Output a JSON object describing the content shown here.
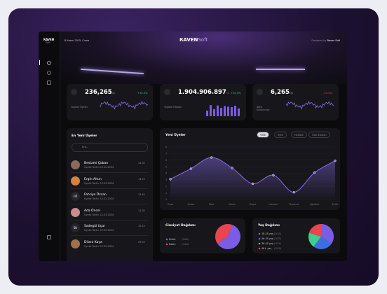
{
  "sidebar": {
    "logo": "RAVEN",
    "logo_sub": "Soft"
  },
  "header": {
    "date": "8 Kasım 2025, Cuma",
    "brand": "RAVEN",
    "brand_sub": "Soft",
    "credit": "Designed by",
    "credit_brand": "Raven Soft"
  },
  "stats": [
    {
      "value": "236,265",
      "unit": "Kişi",
      "change": "+10.3%",
      "label": "Toplam Üyeler"
    },
    {
      "value": "1.904.906.897",
      "unit": "TL",
      "change": "+10.3%",
      "label": "Toplam Hasılat"
    },
    {
      "value": "6,265",
      "unit": "Kişi",
      "change": "-10.3%",
      "label": "Aktif Kullanıcılar"
    }
  ],
  "members": {
    "title": "En Yeni Üyeler",
    "search": "Ara...",
    "items": [
      {
        "name": "Bestami Çoban",
        "date": "Üyelik Tarihi: 12.02.2024",
        "time": "14:32"
      },
      {
        "name": "Ergin Altun",
        "date": "Üyelik Tarihi: 12.02.2024",
        "time": "13:20"
      },
      {
        "name": "Fahriye Özcan",
        "initials": "FÖ",
        "date": "Üyelik Tarihi: 12.02.2024",
        "time": "12:45"
      },
      {
        "name": "Ada Öncel",
        "date": "Üyelik Tarihi: 12.02.2024",
        "time": "11:30"
      },
      {
        "name": "Sadegül Uçar",
        "initials": "SU",
        "date": "Üyelik Tarihi: 12.02.2024",
        "time": "10:15"
      },
      {
        "name": "Dilara Kaya",
        "date": "Üyelik Tarihi: 12.02.2024",
        "time": "09:50"
      }
    ]
  },
  "new_members": {
    "title": "Yeni Üyeler",
    "tabs": [
      "Yıllık",
      "Aylık",
      "Haftalık",
      "Özel Zaman"
    ],
    "chart": {
      "type": "line",
      "categories": [
        "Ocak",
        "Şubat",
        "Mart",
        "Nisan",
        "Mayıs",
        "Haziran",
        "Temmuz",
        "Ağustos",
        "Eylül"
      ],
      "values": [
        3.1,
        4.7,
        6.4,
        4.8,
        2.4,
        3.7,
        1.1,
        4.1,
        5.9
      ],
      "ylim": [
        0,
        8
      ],
      "yticks": [
        0,
        1,
        2,
        3,
        4,
        5,
        6,
        7,
        8
      ],
      "color": "#8b6cf0"
    }
  },
  "gender": {
    "title": "Cinsiyet Dağılımı",
    "chart": {
      "type": "pie",
      "categories": [
        "Erkek",
        "Kadın"
      ],
      "values": [
        60,
        40
      ],
      "value_labels": [
        "(%60)",
        "(%40)"
      ],
      "colors": [
        "#7b5ce6",
        "#e8454f"
      ]
    }
  },
  "age": {
    "title": "Yaş Dağılımı",
    "chart": {
      "type": "pie",
      "categories": [
        "18-25 yaş",
        "26-35 yaş",
        "36-45 yaş",
        "46+ yaş"
      ],
      "values": [
        35,
        25,
        20,
        20
      ],
      "value_labels": [
        "(%35)",
        "(%25)",
        "(%20)",
        "(%20)"
      ],
      "colors": [
        "#7b5ce6",
        "#3b6fe0",
        "#3ecf8e",
        "#e8454f"
      ]
    }
  }
}
